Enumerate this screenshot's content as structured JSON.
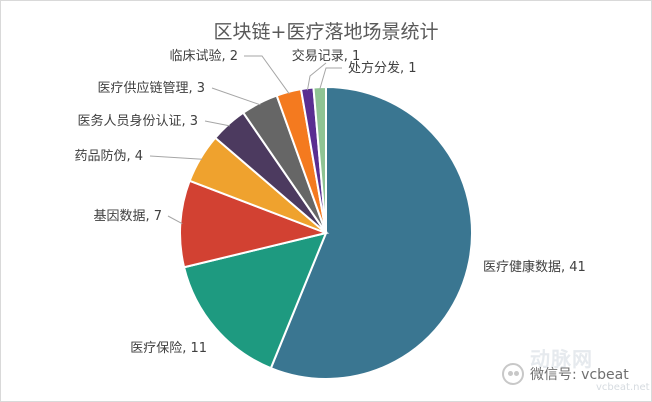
{
  "chart_data": {
    "type": "pie",
    "title": "区块链+医疗落地场景统计",
    "slices": [
      {
        "label": "医疗健康数据, 41",
        "name": "医疗健康数据",
        "value": 41,
        "color": "#3a7691"
      },
      {
        "label": "医疗保险, 11",
        "name": "医疗保险",
        "value": 11,
        "color": "#1e9a80"
      },
      {
        "label": "基因数据, 7",
        "name": "基因数据",
        "value": 7,
        "color": "#d24132"
      },
      {
        "label": "药品防伪, 4",
        "name": "药品防伪",
        "value": 4,
        "color": "#efa22e"
      },
      {
        "label": "医务人员身份认证, 3",
        "name": "医务人员身份认证",
        "value": 3,
        "color": "#4c3a5f"
      },
      {
        "label": "医疗供应链管理, 3",
        "name": "医疗供应链管理",
        "value": 3,
        "color": "#666666"
      },
      {
        "label": "临床试验, 2",
        "name": "临床试验",
        "value": 2,
        "color": "#f47a1f"
      },
      {
        "label": "交易记录, 1",
        "name": "交易记录",
        "value": 1,
        "color": "#5a2e91"
      },
      {
        "label": "处方分发, 1",
        "name": "处方分发",
        "value": 1,
        "color": "#8fc393"
      }
    ],
    "legend": "none",
    "data_labels": "outside-with-leader-lines"
  },
  "watermark": {
    "wechat_text": "微信号: vcbeat",
    "brand": "动脉网",
    "url": "vcbeat.net",
    "icon": "wechat-icon"
  }
}
